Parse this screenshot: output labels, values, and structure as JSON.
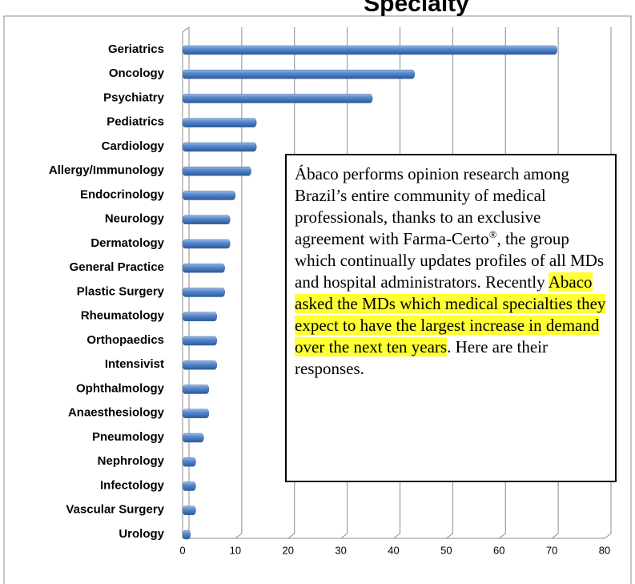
{
  "chart_data": {
    "type": "bar",
    "orientation": "horizontal",
    "title": "Specialty",
    "categories": [
      "Geriatrics",
      "Oncology",
      "Psychiatry",
      "Pediatrics",
      "Cardiology",
      "Allergy/Immunology",
      "Endocrinology",
      "Neurology",
      "Dermatology",
      "General Practice",
      "Plastic Surgery",
      "Rheumatology",
      "Orthopaedics",
      "Intensivist",
      "Ophthalmology",
      "Anaesthesiology",
      "Pneumology",
      "Nephrology",
      "Infectology",
      "Vascular Surgery",
      "Urology"
    ],
    "values": [
      71,
      44,
      36,
      14,
      14,
      13,
      10,
      9,
      9,
      8,
      8,
      6.5,
      6.5,
      6.5,
      5,
      5,
      4,
      2.5,
      2.5,
      2.5,
      1.5
    ],
    "color": "#4f81bd",
    "xlim": [
      0,
      80
    ],
    "xticks": [
      0,
      10,
      20,
      30,
      40,
      50,
      60,
      70,
      80
    ],
    "grid": true
  },
  "text_box": {
    "part1": "Ábaco performs opinion research among Brazil’s entire community of medical professionals, thanks to an exclusive agreement with Farma-Certo",
    "sup": "®",
    "part2": ", the group which continually updates profiles of all MDs and hospital administrators. Recently ",
    "highlight": "Abaco asked the MDs which medical specialties they expect to have the largest increase in demand over the next ten years",
    "part3": ". Here are their responses."
  }
}
